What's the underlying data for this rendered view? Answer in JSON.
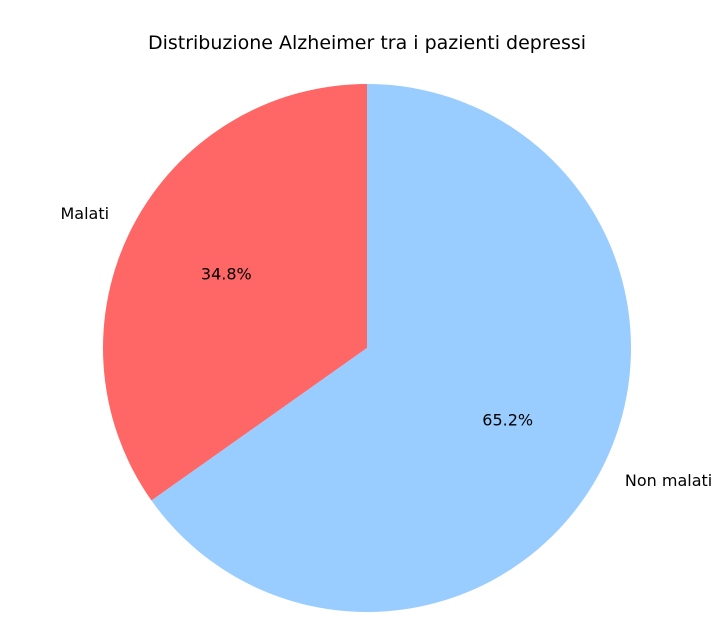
{
  "chart_data": {
    "type": "pie",
    "title": "Distribuzione Alzheimer tra i pazienti depressi",
    "slices": [
      {
        "label": "Malati",
        "value": 34.8,
        "pct_label": "34.8%",
        "color": "#ff6666"
      },
      {
        "label": "Non malati",
        "value": 65.2,
        "pct_label": "65.2%",
        "color": "#99ccff"
      }
    ],
    "start_angle_deg": 90,
    "direction": "counterclockwise"
  }
}
